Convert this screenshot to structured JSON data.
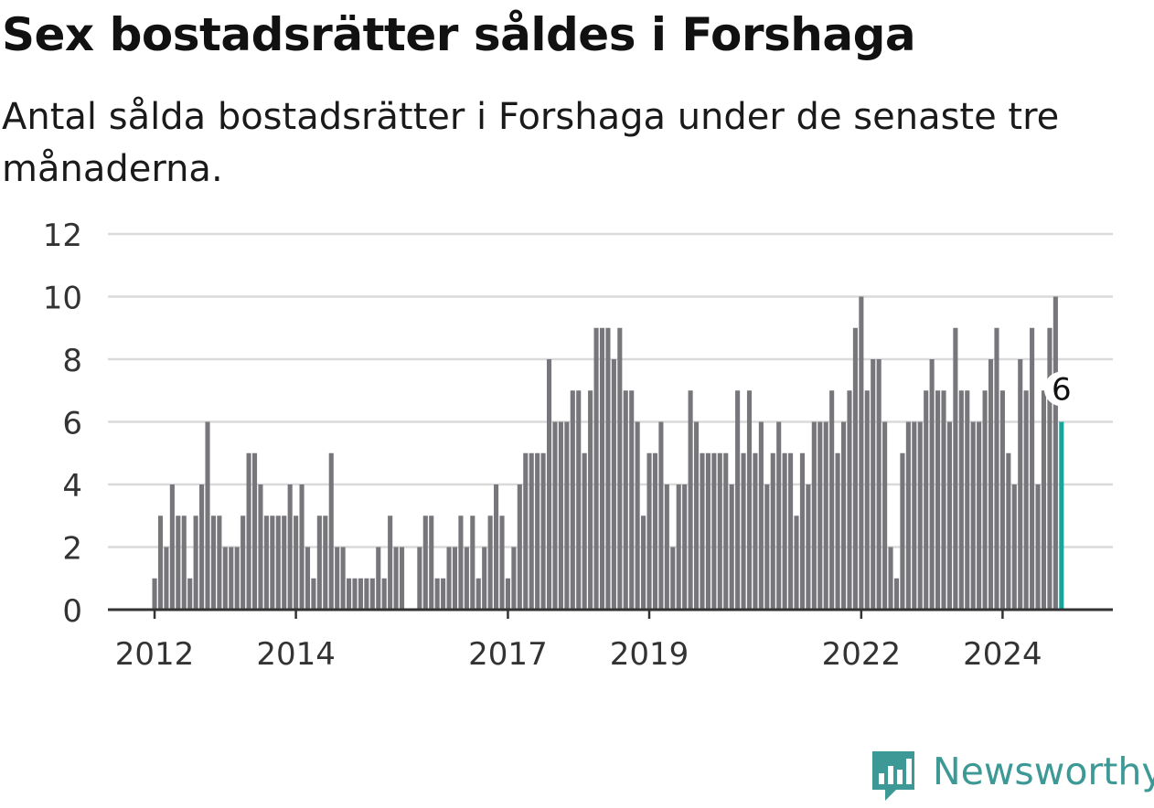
{
  "title": "Sex bostadsrätter såldes i Forshaga",
  "subtitle": "Antal sålda bostadsrätter i Forshaga under de senaste tre månaderna.",
  "brand": {
    "name": "Newsworthy",
    "color": "#3d9995"
  },
  "chart_data": {
    "type": "bar",
    "title": "Sex bostadsrätter såldes i Forshaga",
    "subtitle": "Antal sålda bostadsrätter i Forshaga under de senaste tre månaderna.",
    "xlabel": "",
    "ylabel": "",
    "ylim": [
      0,
      12
    ],
    "yticks": [
      "0",
      "2",
      "4",
      "6",
      "8",
      "10",
      "12"
    ],
    "xticks": [
      "2012",
      "2014",
      "2017",
      "2019",
      "2022",
      "2024"
    ],
    "grid": true,
    "bar_color": "#77767b",
    "highlight_color": "#1aa49b",
    "highlight_label": "6",
    "start_month": "2012-01",
    "end_month": "2024-12",
    "values": [
      1,
      3,
      2,
      4,
      3,
      3,
      1,
      3,
      4,
      6,
      3,
      3,
      2,
      2,
      2,
      3,
      5,
      5,
      4,
      3,
      3,
      3,
      3,
      4,
      3,
      4,
      2,
      1,
      3,
      3,
      5,
      2,
      2,
      1,
      1,
      1,
      1,
      1,
      2,
      1,
      3,
      2,
      2,
      0,
      0,
      2,
      3,
      3,
      1,
      1,
      2,
      2,
      3,
      2,
      3,
      1,
      2,
      3,
      4,
      3,
      1,
      2,
      4,
      5,
      5,
      5,
      5,
      8,
      6,
      6,
      6,
      7,
      7,
      5,
      7,
      9,
      9,
      9,
      8,
      9,
      7,
      7,
      6,
      3,
      5,
      5,
      6,
      4,
      2,
      4,
      4,
      7,
      6,
      5,
      5,
      5,
      5,
      5,
      4,
      7,
      5,
      7,
      5,
      6,
      4,
      5,
      6,
      5,
      5,
      3,
      5,
      4,
      6,
      6,
      6,
      7,
      5,
      6,
      7,
      9,
      10,
      7,
      8,
      8,
      6,
      2,
      1,
      5,
      6,
      6,
      6,
      7,
      8,
      7,
      7,
      6,
      9,
      7,
      7,
      6,
      6,
      7,
      8,
      9,
      7,
      5,
      4,
      8,
      7,
      9,
      4,
      7,
      9,
      10,
      6
    ]
  }
}
